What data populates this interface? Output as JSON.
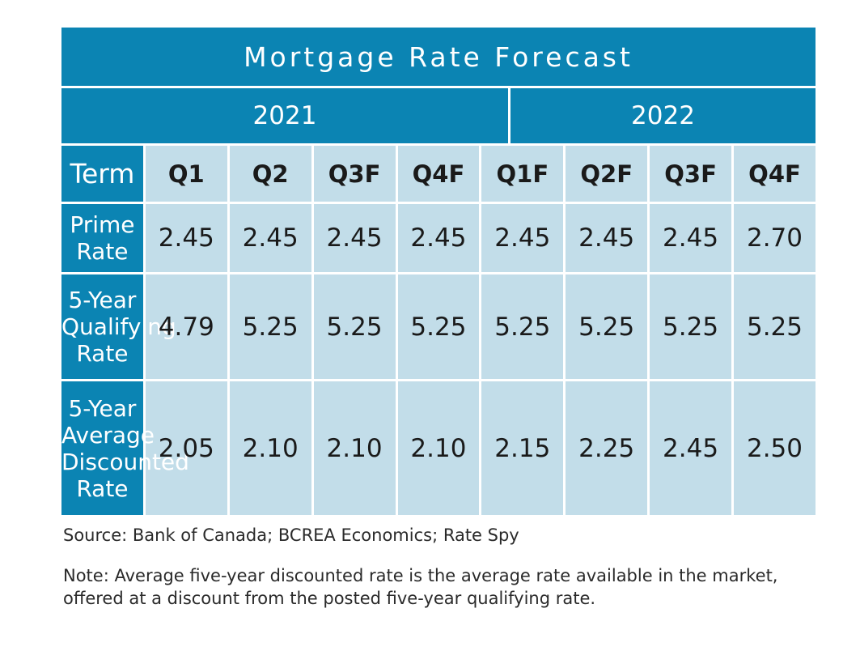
{
  "chart_data": {
    "type": "table",
    "title": "Mortgage Rate Forecast",
    "years": [
      {
        "label": "2021",
        "span": 4
      },
      {
        "label": "2022",
        "span": 4
      }
    ],
    "row_header_label": "Term",
    "columns": [
      "Q1",
      "Q2",
      "Q3F",
      "Q4F",
      "Q1F",
      "Q2F",
      "Q3F",
      "Q4F"
    ],
    "rows": [
      {
        "label_lines": [
          "Prime",
          "Rate"
        ],
        "values": [
          "2.45",
          "2.45",
          "2.45",
          "2.45",
          "2.45",
          "2.45",
          "2.45",
          "2.70"
        ]
      },
      {
        "label_lines": [
          "5-Year",
          "Qualifying",
          "Rate"
        ],
        "values": [
          "4.79",
          "5.25",
          "5.25",
          "5.25",
          "5.25",
          "5.25",
          "5.25",
          "5.25"
        ]
      },
      {
        "label_lines": [
          "5-Year",
          "Average",
          "Discounted",
          "Rate"
        ],
        "values": [
          "2.05",
          "2.10",
          "2.10",
          "2.10",
          "2.15",
          "2.25",
          "2.45",
          "2.50"
        ]
      }
    ],
    "source": "Source: Bank of Canada; BCREA Economics; Rate Spy",
    "note": "Note: Average five-year discounted rate is the average rate available in the market, offered at a discount from the posted five-year qualifying rate."
  },
  "colors": {
    "header_blue": "#0b84b3",
    "cell_light_blue": "#c2dde9",
    "text_dark": "#1a1a1a"
  }
}
